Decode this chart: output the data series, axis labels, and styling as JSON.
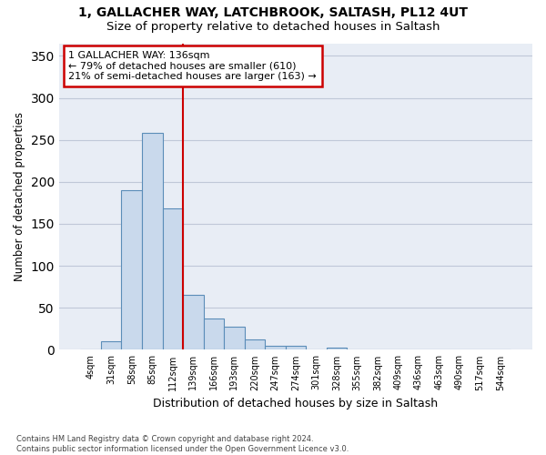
{
  "title1": "1, GALLACHER WAY, LATCHBROOK, SALTASH, PL12 4UT",
  "title2": "Size of property relative to detached houses in Saltash",
  "xlabel": "Distribution of detached houses by size in Saltash",
  "ylabel": "Number of detached properties",
  "bin_labels": [
    "4sqm",
    "31sqm",
    "58sqm",
    "85sqm",
    "112sqm",
    "139sqm",
    "166sqm",
    "193sqm",
    "220sqm",
    "247sqm",
    "274sqm",
    "301sqm",
    "328sqm",
    "355sqm",
    "382sqm",
    "409sqm",
    "436sqm",
    "463sqm",
    "490sqm",
    "517sqm",
    "544sqm"
  ],
  "bar_heights": [
    1,
    10,
    190,
    258,
    168,
    65,
    37,
    28,
    12,
    5,
    5,
    0,
    3,
    0,
    0,
    0,
    1,
    0,
    0,
    1,
    0
  ],
  "bar_color": "#c9d9ec",
  "bar_edge_color": "#5b8db8",
  "vline_x": 4.5,
  "vline_color": "#cc0000",
  "annotation_line1": "1 GALLACHER WAY: 136sqm",
  "annotation_line2": "← 79% of detached houses are smaller (610)",
  "annotation_line3": "21% of semi-detached houses are larger (163) →",
  "annotation_box_color": "#ffffff",
  "annotation_box_edge": "#cc0000",
  "grid_color": "#c0c8d8",
  "bg_color": "#e8edf5",
  "fig_bg_color": "#ffffff",
  "footer": "Contains HM Land Registry data © Crown copyright and database right 2024.\nContains public sector information licensed under the Open Government Licence v3.0.",
  "ylim": [
    0,
    365
  ],
  "yticks": [
    0,
    50,
    100,
    150,
    200,
    250,
    300,
    350
  ]
}
